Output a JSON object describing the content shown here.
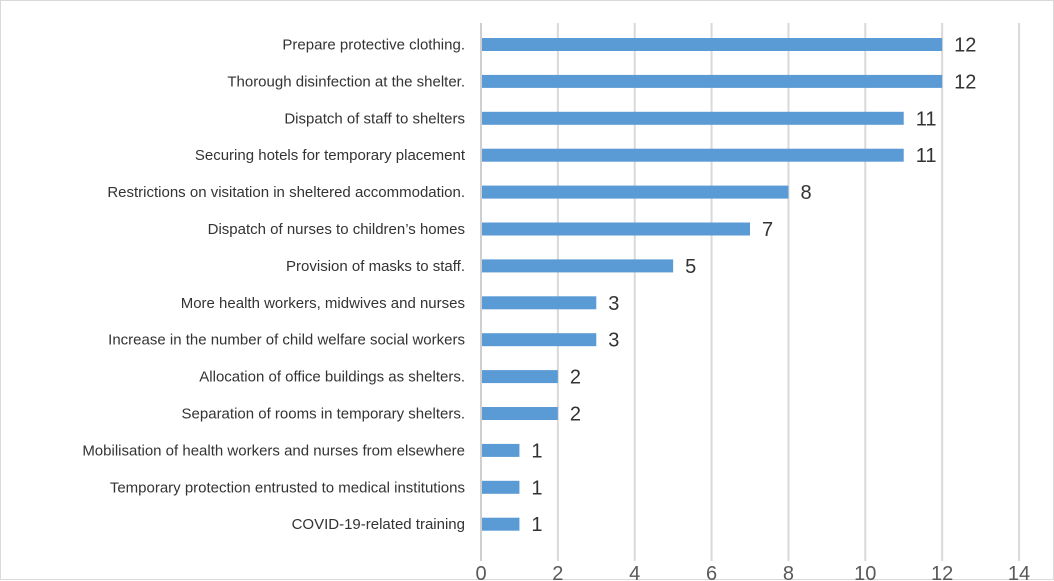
{
  "chart_data": {
    "type": "bar",
    "orientation": "horizontal",
    "title": "",
    "xlabel": "",
    "ylabel": "",
    "xlim": [
      0,
      14
    ],
    "x_ticks": [
      0,
      2,
      4,
      6,
      8,
      10,
      12,
      14
    ],
    "grid": true,
    "legend": "none",
    "bar_color": "#5b9bd5",
    "categories": [
      "Prepare protective clothing.",
      "Thorough disinfection at the shelter.",
      "Dispatch of staff to shelters",
      "Securing hotels for temporary placement",
      "Restrictions on visitation in sheltered accommodation.",
      "Dispatch of nurses to children’s homes",
      "Provision of masks to staff.",
      "More health workers, midwives and nurses",
      "Increase in the number of child welfare social workers",
      "Allocation of office buildings as shelters.",
      "Separation of rooms in temporary shelters.",
      "Mobilisation of health workers and nurses from elsewhere",
      "Temporary protection entrusted to medical institutions",
      "COVID-19-related training"
    ],
    "values": [
      12,
      12,
      11,
      11,
      8,
      7,
      5,
      3,
      3,
      2,
      2,
      1,
      1,
      1
    ]
  }
}
